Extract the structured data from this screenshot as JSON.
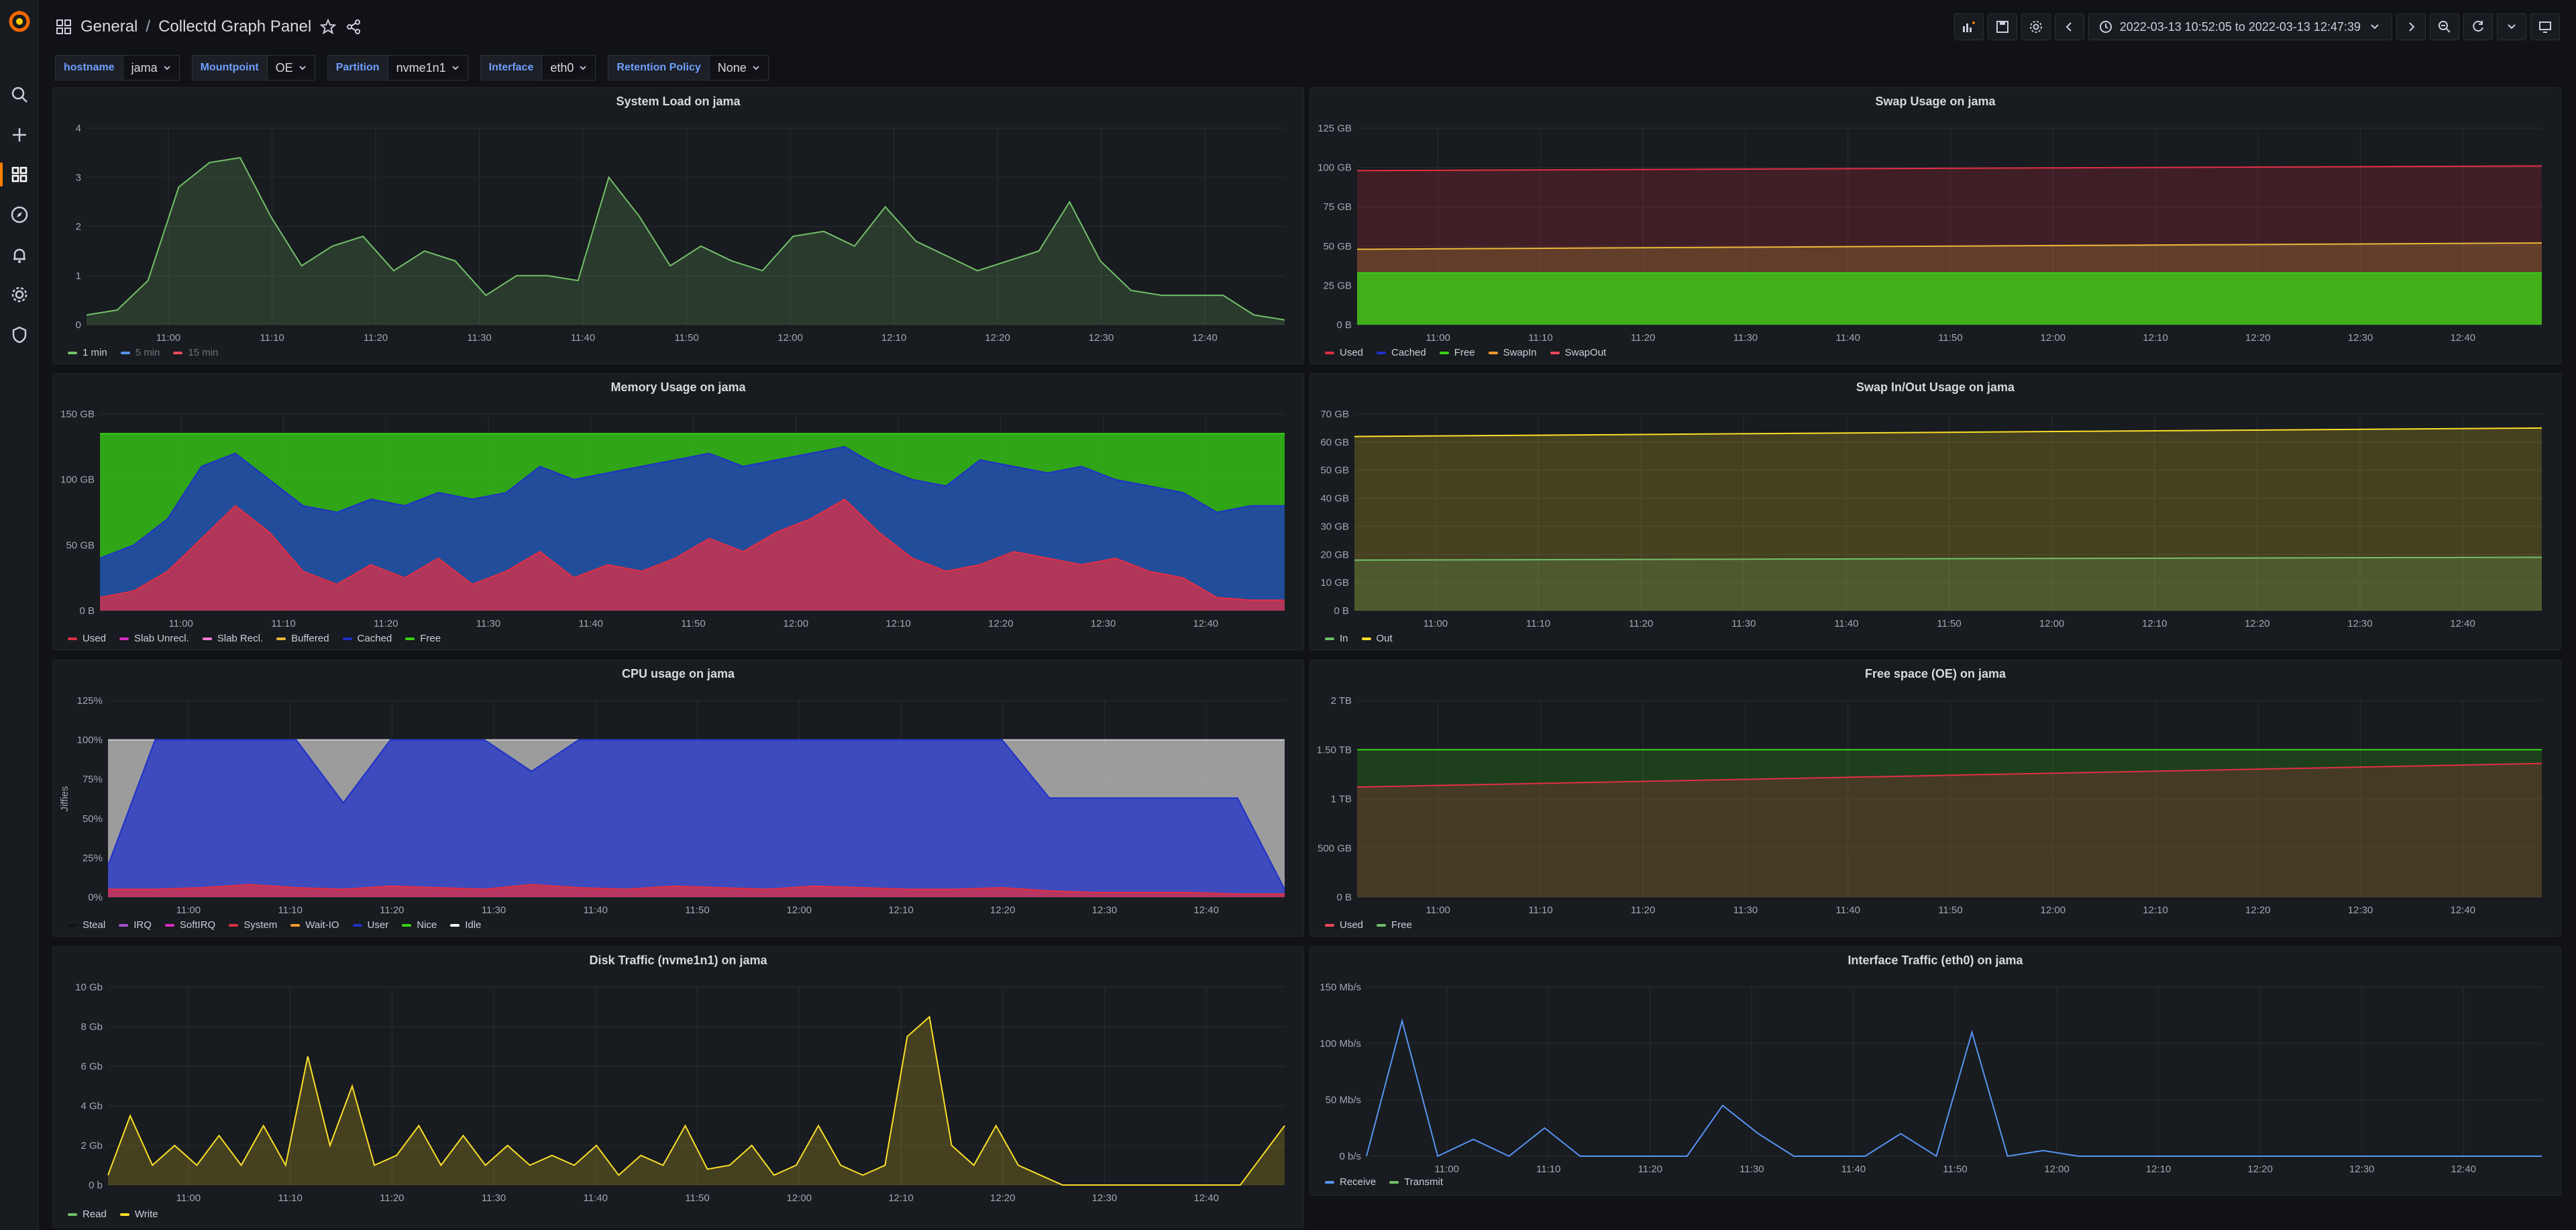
{
  "breadcrumb": {
    "folder": "General",
    "separator": "/",
    "dashboard": "Collectd Graph Panel"
  },
  "toolbar": {
    "time_range": "2022-03-13 10:52:05 to 2022-03-13 12:47:39"
  },
  "variables": [
    {
      "label": "hostname",
      "value": "jama"
    },
    {
      "label": "Mountpoint",
      "value": "OE"
    },
    {
      "label": "Partition",
      "value": "nvme1n1"
    },
    {
      "label": "Interface",
      "value": "eth0"
    },
    {
      "label": "Retention Policy",
      "value": "None"
    }
  ],
  "colors": {
    "accent": "#ff7f00",
    "link": "#6e9fff",
    "green": "#73bf69",
    "blue": "#5794f2",
    "red": "#f2495c",
    "yellow": "#fade2a"
  },
  "panels": {
    "system_load": {
      "title": "System Load on jama",
      "legend": [
        {
          "name": "1 min",
          "color": "#73bf69",
          "hidden": false
        },
        {
          "name": "5 min",
          "color": "#5794f2",
          "hidden": true
        },
        {
          "name": "15 min",
          "color": "#f2495c",
          "hidden": true
        }
      ]
    },
    "swap_usage": {
      "title": "Swap Usage on jama",
      "legend": [
        {
          "name": "Used",
          "color": "#e02f44"
        },
        {
          "name": "Cached",
          "color": "#1f30c8"
        },
        {
          "name": "Free",
          "color": "#37d416"
        },
        {
          "name": "SwapIn",
          "color": "#ff9830"
        },
        {
          "name": "SwapOut",
          "color": "#f2495c"
        }
      ]
    },
    "memory_usage": {
      "title": "Memory Usage on jama",
      "legend": [
        {
          "name": "Used",
          "color": "#e02f44"
        },
        {
          "name": "Slab Unrecl.",
          "color": "#d72bc5"
        },
        {
          "name": "Slab Recl.",
          "color": "#ff7ad8"
        },
        {
          "name": "Buffered",
          "color": "#eab839"
        },
        {
          "name": "Cached",
          "color": "#1f30c8"
        },
        {
          "name": "Free",
          "color": "#37d416"
        }
      ]
    },
    "swap_inout": {
      "title": "Swap In/Out Usage on jama",
      "legend": [
        {
          "name": "In",
          "color": "#73bf69"
        },
        {
          "name": "Out",
          "color": "#fade2a"
        }
      ]
    },
    "cpu_usage": {
      "title": "CPU usage on jama",
      "legend": [
        {
          "name": "Steal",
          "color": "#111217"
        },
        {
          "name": "IRQ",
          "color": "#a352cc"
        },
        {
          "name": "SoftIRQ",
          "color": "#d72bc5"
        },
        {
          "name": "System",
          "color": "#e02f44"
        },
        {
          "name": "Wait-IO",
          "color": "#ff9830"
        },
        {
          "name": "User",
          "color": "#1f30c8"
        },
        {
          "name": "Nice",
          "color": "#37d416"
        },
        {
          "name": "Idle",
          "color": "#ffffff"
        }
      ]
    },
    "free_space": {
      "title": "Free space (OE) on jama",
      "legend": [
        {
          "name": "Used",
          "color": "#f2495c"
        },
        {
          "name": "Free",
          "color": "#73bf69"
        }
      ]
    },
    "disk_traffic": {
      "title": "Disk Traffic (nvme1n1) on jama",
      "legend": [
        {
          "name": "Read",
          "color": "#73bf69"
        },
        {
          "name": "Write",
          "color": "#fade2a"
        }
      ]
    },
    "iface_traffic": {
      "title": "Interface Traffic (eth0) on jama",
      "legend": [
        {
          "name": "Receive",
          "color": "#5794f2"
        },
        {
          "name": "Transmit",
          "color": "#73bf69"
        }
      ]
    }
  },
  "chart_data": [
    {
      "type": "area",
      "id": "system_load",
      "ylim": [
        0,
        4
      ],
      "yticks": [
        "0",
        "1",
        "2",
        "3",
        "4"
      ],
      "xticks": [
        "11:00",
        "11:10",
        "11:20",
        "11:30",
        "11:40",
        "11:50",
        "12:00",
        "12:10",
        "12:20",
        "12:30",
        "12:40"
      ],
      "series": [
        {
          "name": "1 min",
          "x": [
            "10:52",
            "10:56",
            "11:00",
            "11:04",
            "11:06",
            "11:08",
            "11:11",
            "11:14",
            "11:16",
            "11:19",
            "11:22",
            "11:25",
            "11:27",
            "11:30",
            "11:32",
            "11:35",
            "11:38",
            "11:40",
            "11:42",
            "11:45",
            "11:48",
            "11:50",
            "11:53",
            "11:56",
            "11:59",
            "12:02",
            "12:05",
            "12:08",
            "12:11",
            "12:14",
            "12:16",
            "12:18",
            "12:20",
            "12:22",
            "12:25",
            "12:30",
            "12:35",
            "12:40",
            "12:44",
            "12:47"
          ],
          "values": [
            0.2,
            0.3,
            0.9,
            2.8,
            3.3,
            3.4,
            2.2,
            1.2,
            1.6,
            1.8,
            1.1,
            1.5,
            1.3,
            0.6,
            1.0,
            1.0,
            0.9,
            3.0,
            2.2,
            1.2,
            1.6,
            1.3,
            1.1,
            1.8,
            1.9,
            1.6,
            2.4,
            1.7,
            1.4,
            1.1,
            1.3,
            1.5,
            2.5,
            1.3,
            0.7,
            0.6,
            0.6,
            0.6,
            0.2,
            0.1
          ]
        }
      ]
    },
    {
      "type": "area",
      "id": "swap_usage",
      "ylim": [
        0,
        125
      ],
      "yticks": [
        "0 B",
        "25 GB",
        "50 GB",
        "75 GB",
        "100 GB",
        "125 GB"
      ],
      "xticks": [
        "11:00",
        "11:10",
        "11:20",
        "11:30",
        "11:40",
        "11:50",
        "12:00",
        "12:10",
        "12:20",
        "12:30",
        "12:40"
      ],
      "series": [
        {
          "name": "Free",
          "values": [
            33,
            33
          ]
        },
        {
          "name": "SwapIn",
          "values": [
            48,
            52
          ]
        },
        {
          "name": "Used",
          "values": [
            98,
            101
          ]
        }
      ]
    },
    {
      "type": "area",
      "id": "memory_usage",
      "ylim": [
        0,
        150
      ],
      "yticks": [
        "0 B",
        "50 GB",
        "100 GB",
        "150 GB"
      ],
      "xticks": [
        "11:00",
        "11:10",
        "11:20",
        "11:30",
        "11:40",
        "11:50",
        "12:00",
        "12:10",
        "12:20",
        "12:30",
        "12:40"
      ],
      "series": [
        {
          "name": "Used",
          "values": [
            10,
            15,
            30,
            55,
            80,
            60,
            30,
            20,
            35,
            25,
            40,
            20,
            30,
            45,
            25,
            35,
            30,
            40,
            55,
            45,
            60,
            70,
            85,
            60,
            40,
            30,
            35,
            45,
            40,
            35,
            40,
            30,
            25,
            10,
            8,
            8
          ]
        },
        {
          "name": "Cached",
          "values": [
            40,
            50,
            70,
            110,
            120,
            100,
            80,
            75,
            85,
            80,
            90,
            85,
            90,
            110,
            100,
            105,
            110,
            115,
            120,
            110,
            115,
            120,
            125,
            110,
            100,
            95,
            115,
            110,
            105,
            110,
            100,
            95,
            90,
            75,
            80,
            80
          ]
        },
        {
          "name": "Free",
          "values": [
            135,
            135,
            135,
            135,
            135,
            135,
            135,
            135,
            135,
            135,
            135,
            135,
            135,
            135,
            135,
            135,
            135,
            135,
            135,
            135,
            135,
            135,
            135,
            135,
            135,
            135,
            135,
            135,
            135,
            135,
            135,
            135,
            135,
            135,
            135,
            135
          ]
        }
      ]
    },
    {
      "type": "area",
      "id": "swap_inout",
      "ylim": [
        0,
        70
      ],
      "yticks": [
        "0 B",
        "10 GB",
        "20 GB",
        "30 GB",
        "40 GB",
        "50 GB",
        "60 GB",
        "70 GB"
      ],
      "xticks": [
        "11:00",
        "11:10",
        "11:20",
        "11:30",
        "11:40",
        "11:50",
        "12:00",
        "12:10",
        "12:20",
        "12:30",
        "12:40"
      ],
      "series": [
        {
          "name": "In",
          "values": [
            18,
            19
          ]
        },
        {
          "name": "Out",
          "values": [
            62,
            65
          ]
        }
      ]
    },
    {
      "type": "area",
      "id": "cpu_usage",
      "ylabel": "Jiffies",
      "ylim": [
        0,
        125
      ],
      "yticks": [
        "0%",
        "25%",
        "50%",
        "75%",
        "100%",
        "125%"
      ],
      "xticks": [
        "11:00",
        "11:10",
        "11:20",
        "11:30",
        "11:40",
        "11:50",
        "12:00",
        "12:10",
        "12:20",
        "12:30",
        "12:40"
      ],
      "series": [
        {
          "name": "System",
          "values": [
            5,
            5,
            6,
            8,
            6,
            5,
            7,
            6,
            5,
            8,
            6,
            5,
            7,
            6,
            5,
            7,
            6,
            5,
            5,
            6,
            4,
            3,
            3,
            3,
            2,
            2
          ]
        },
        {
          "name": "User",
          "values": [
            20,
            100,
            100,
            100,
            100,
            60,
            100,
            100,
            100,
            80,
            100,
            100,
            100,
            100,
            100,
            100,
            100,
            100,
            100,
            100,
            63,
            63,
            63,
            63,
            63,
            5
          ]
        },
        {
          "name": "Idle",
          "values": [
            100,
            100,
            100,
            100,
            100,
            100,
            100,
            100,
            100,
            100,
            100,
            100,
            100,
            100,
            100,
            100,
            100,
            100,
            100,
            100,
            100,
            100,
            100,
            100,
            100,
            100
          ]
        }
      ]
    },
    {
      "type": "area",
      "id": "free_space",
      "ylim": [
        0,
        2
      ],
      "yticks": [
        "0 B",
        "500 GB",
        "1 TB",
        "1.50 TB",
        "2 TB"
      ],
      "xticks": [
        "11:00",
        "11:10",
        "11:20",
        "11:30",
        "11:40",
        "11:50",
        "12:00",
        "12:10",
        "12:20",
        "12:30",
        "12:40"
      ],
      "series": [
        {
          "name": "Used",
          "values": [
            1.12,
            1.36
          ]
        },
        {
          "name": "Free",
          "values": [
            1.5,
            1.5
          ]
        }
      ]
    },
    {
      "type": "area",
      "id": "disk_traffic",
      "ylim": [
        0,
        10
      ],
      "yticks": [
        "0 b",
        "2 Gb",
        "4 Gb",
        "6 Gb",
        "8 Gb",
        "10 Gb"
      ],
      "xticks": [
        "11:00",
        "11:10",
        "11:20",
        "11:30",
        "11:40",
        "11:50",
        "12:00",
        "12:10",
        "12:20",
        "12:30",
        "12:40"
      ],
      "series": [
        {
          "name": "Write",
          "values": [
            0.5,
            3.5,
            1,
            2,
            1,
            2.5,
            1,
            3,
            1,
            6.5,
            2,
            5,
            1,
            1.5,
            3,
            1,
            2.5,
            1,
            2,
            1,
            1.5,
            1,
            2,
            0.5,
            1.5,
            1,
            3,
            0.8,
            1,
            2,
            0.5,
            1,
            3,
            1,
            0.5,
            1,
            7.5,
            8.5,
            2,
            1,
            3,
            1,
            0.5,
            0,
            0,
            0,
            0,
            0,
            0,
            0,
            0,
            0,
            1.5,
            3
          ]
        }
      ]
    },
    {
      "type": "line",
      "id": "iface_traffic",
      "ylim": [
        0,
        150
      ],
      "yticks": [
        "0 b/s",
        "50 Mb/s",
        "100 Mb/s",
        "150 Mb/s"
      ],
      "xticks": [
        "11:00",
        "11:10",
        "11:20",
        "11:30",
        "11:40",
        "11:50",
        "12:00",
        "12:10",
        "12:20",
        "12:30",
        "12:40"
      ],
      "series": [
        {
          "name": "Receive",
          "values": [
            0,
            120,
            0,
            15,
            0,
            25,
            0,
            0,
            0,
            0,
            45,
            20,
            0,
            0,
            0,
            20,
            0,
            110,
            0,
            5,
            0,
            0,
            0,
            0,
            0,
            0,
            0,
            0,
            0,
            0,
            0,
            0,
            0,
            0
          ]
        }
      ]
    }
  ]
}
